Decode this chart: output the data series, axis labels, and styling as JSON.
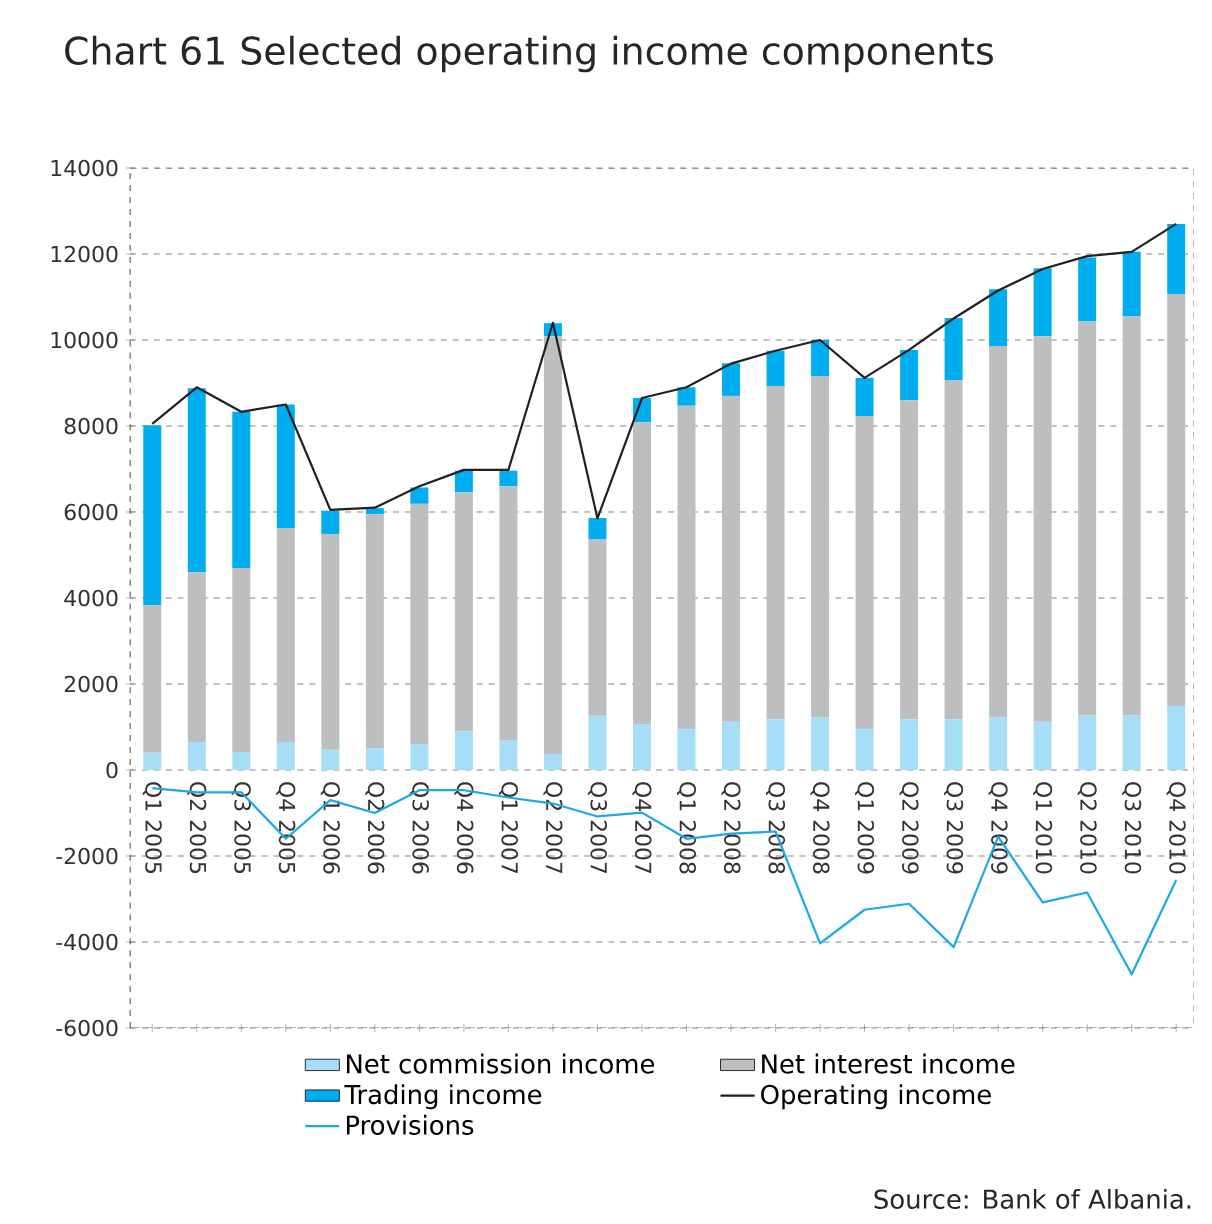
{
  "chart_data": {
    "type": "bar",
    "stacked": true,
    "title": "Chart 61 Selected operating income components",
    "categories": [
      "Q1 2005",
      "Q2 2005",
      "Q3 2005",
      "Q4 2005",
      "Q1 2006",
      "Q2 2006",
      "Q3 2006",
      "Q4 2006",
      "Q1 2007",
      "Q2 2007",
      "Q3 2007",
      "Q4 2007",
      "Q1 2008",
      "Q2 2008",
      "Q3 2008",
      "Q4 2008",
      "Q1 2009",
      "Q2 2009",
      "Q3 2009",
      "Q4 2009",
      "Q1 2010",
      "Q2 2010",
      "Q3 2010",
      "Q4 2010"
    ],
    "series": [
      {
        "name": "Net commission income",
        "color": "#a6def8",
        "values": [
          400,
          650,
          420,
          650,
          470,
          510,
          600,
          900,
          700,
          370,
          1260,
          1070,
          950,
          1120,
          1180,
          1220,
          950,
          1180,
          1180,
          1220,
          1120,
          1270,
          1270,
          1490
        ]
      },
      {
        "name": "Net interest income",
        "color": "#bcbec0",
        "values": [
          3430,
          3950,
          4280,
          4980,
          5020,
          5440,
          5590,
          5560,
          5900,
          9720,
          4100,
          7020,
          7520,
          7580,
          7750,
          7940,
          7280,
          7420,
          7890,
          8640,
          8970,
          9160,
          9290,
          9580
        ]
      },
      {
        "name": "Trading income",
        "color": "#00aeef",
        "values": [
          4190,
          4280,
          3630,
          2870,
          540,
          140,
          380,
          500,
          360,
          300,
          500,
          560,
          430,
          760,
          820,
          840,
          890,
          1170,
          1440,
          1320,
          1580,
          1490,
          1490,
          1630
        ]
      },
      {
        "name": "Operating income",
        "type": "line",
        "color": "#231f20",
        "values": [
          8050,
          8900,
          8330,
          8500,
          6050,
          6100,
          6600,
          6980,
          6980,
          10400,
          5850,
          8650,
          8900,
          9450,
          9750,
          10000,
          9120,
          9770,
          10500,
          11150,
          11650,
          11950,
          12050,
          12700
        ]
      },
      {
        "name": "Provisions",
        "type": "line",
        "color": "#1aa9e6",
        "values": [
          -420,
          -520,
          -520,
          -1600,
          -700,
          -1000,
          -470,
          -470,
          -640,
          -780,
          -1080,
          -990,
          -1600,
          -1480,
          -1430,
          -4030,
          -3250,
          -3110,
          -4120,
          -1550,
          -3080,
          -2850,
          -4750,
          -2560
        ]
      }
    ],
    "ylim": [
      -6000,
      14000
    ],
    "yticks": [
      -6000,
      -4000,
      -2000,
      0,
      2000,
      4000,
      6000,
      8000,
      10000,
      12000,
      14000
    ],
    "grid": "y",
    "legend": "bottom",
    "annotations": [
      "Source: Bank of Albania."
    ]
  }
}
